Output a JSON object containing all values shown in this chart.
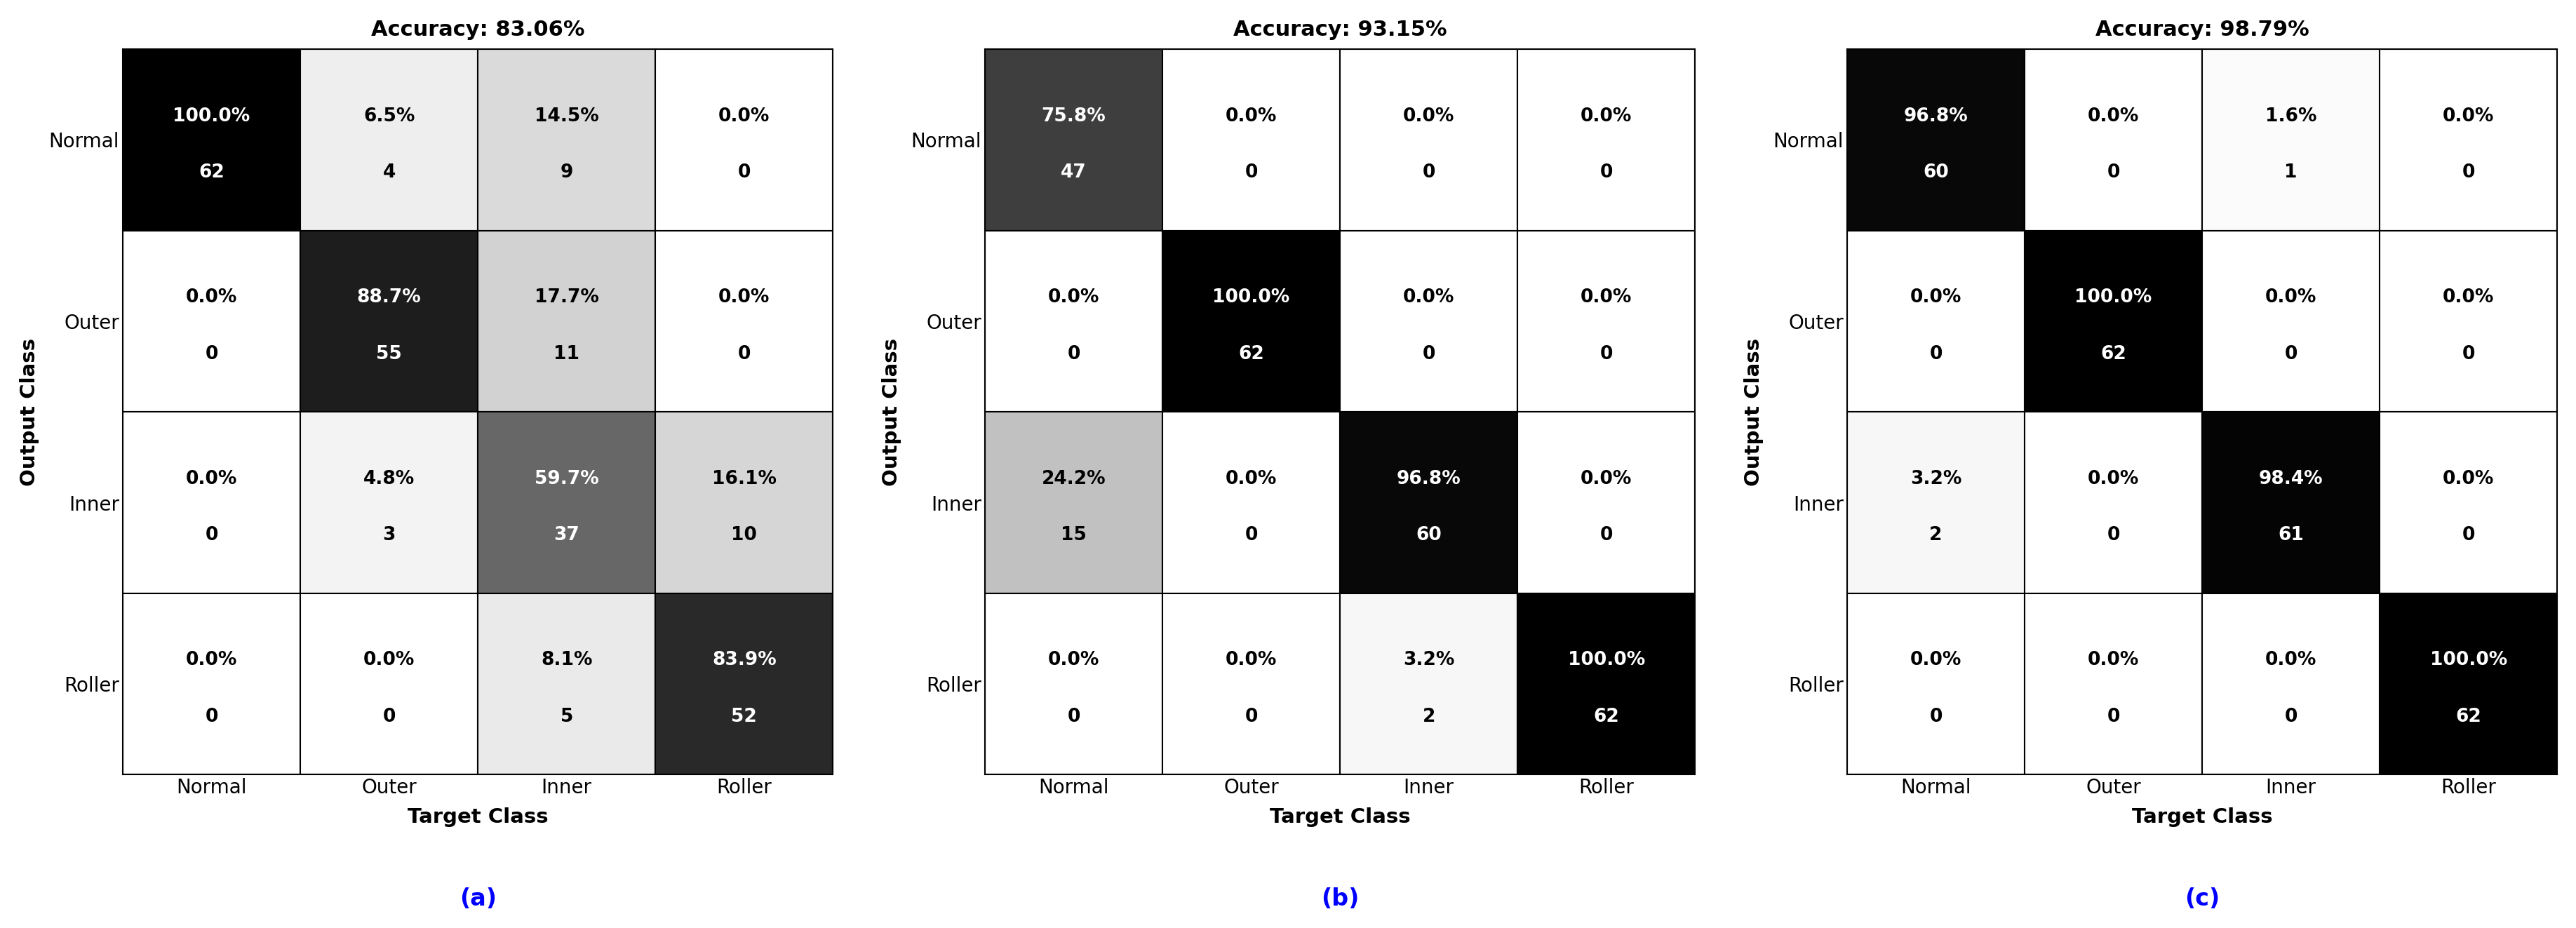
{
  "charts": [
    {
      "title": "Accuracy: 83.06%",
      "label": "(a)",
      "matrix_pct": [
        [
          100.0,
          6.5,
          14.5,
          0.0
        ],
        [
          0.0,
          88.7,
          17.7,
          0.0
        ],
        [
          0.0,
          4.8,
          59.7,
          16.1
        ],
        [
          0.0,
          0.0,
          8.1,
          83.9
        ]
      ],
      "matrix_counts": [
        [
          62,
          4,
          9,
          0
        ],
        [
          0,
          55,
          11,
          0
        ],
        [
          0,
          3,
          37,
          10
        ],
        [
          0,
          0,
          5,
          52
        ]
      ]
    },
    {
      "title": "Accuracy: 93.15%",
      "label": "(b)",
      "matrix_pct": [
        [
          75.8,
          0.0,
          0.0,
          0.0
        ],
        [
          0.0,
          100.0,
          0.0,
          0.0
        ],
        [
          24.2,
          0.0,
          96.8,
          0.0
        ],
        [
          0.0,
          0.0,
          3.2,
          100.0
        ]
      ],
      "matrix_counts": [
        [
          47,
          0,
          0,
          0
        ],
        [
          0,
          62,
          0,
          0
        ],
        [
          15,
          0,
          60,
          0
        ],
        [
          0,
          0,
          2,
          62
        ]
      ]
    },
    {
      "title": "Accuracy: 98.79%",
      "label": "(c)",
      "matrix_pct": [
        [
          96.8,
          0.0,
          1.6,
          0.0
        ],
        [
          0.0,
          100.0,
          0.0,
          0.0
        ],
        [
          3.2,
          0.0,
          98.4,
          0.0
        ],
        [
          0.0,
          0.0,
          0.0,
          100.0
        ]
      ],
      "matrix_counts": [
        [
          60,
          0,
          1,
          0
        ],
        [
          0,
          62,
          0,
          0
        ],
        [
          2,
          0,
          61,
          0
        ],
        [
          0,
          0,
          0,
          62
        ]
      ]
    }
  ],
  "classes": [
    "Normal",
    "Outer",
    "Inner",
    "Roller"
  ],
  "xlabel": "Target Class",
  "ylabel": "Output Class",
  "background_color": "#ffffff",
  "title_fontsize": 22,
  "label_fontsize": 22,
  "tick_fontsize": 20,
  "cell_pct_fontsize": 19,
  "cell_count_fontsize": 19,
  "axis_label_fontsize": 21,
  "subplot_label_fontsize": 24
}
